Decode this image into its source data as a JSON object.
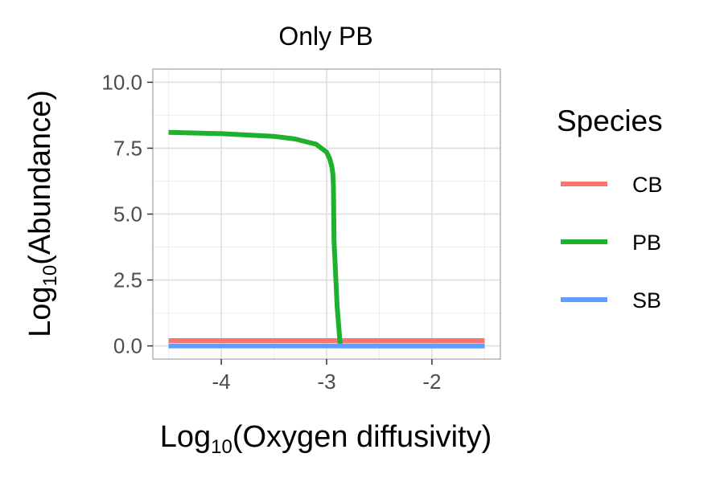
{
  "chart_data": {
    "type": "line",
    "title": "Only PB",
    "xlabel": {
      "base": "Log",
      "sub": "10",
      "paren": "(Oxygen diffusivity)"
    },
    "ylabel": {
      "base": "Log",
      "sub": "10",
      "paren": "(Abundance)"
    },
    "xlim": [
      -4.65,
      -1.35
    ],
    "ylim": [
      -0.5,
      10.5
    ],
    "x_ticks": [
      -4,
      -3,
      -2
    ],
    "x_tick_labels": [
      "-4",
      "-3",
      "-2"
    ],
    "y_ticks": [
      0,
      2.5,
      5,
      7.5,
      10
    ],
    "y_tick_labels": [
      "0.0",
      "2.5",
      "5.0",
      "7.5",
      "10.0"
    ],
    "grid": true,
    "legend": {
      "title": "Species",
      "position": "right"
    },
    "series": [
      {
        "name": "CB",
        "color": "#F8766D",
        "x": [
          -4.5,
          -1.5
        ],
        "y": [
          0.2,
          0.2
        ]
      },
      {
        "name": "PB",
        "color": "#1DB12D",
        "x": [
          -4.5,
          -4.0,
          -3.5,
          -3.3,
          -3.1,
          -3.0,
          -2.97,
          -2.95,
          -2.94,
          -2.935,
          -2.93,
          -2.9,
          -2.87,
          -2.85,
          -2.8,
          -2.5,
          -2.0,
          -1.5
        ],
        "y": [
          8.1,
          8.05,
          7.95,
          7.85,
          7.65,
          7.35,
          7.1,
          6.8,
          6.5,
          6.0,
          4.0,
          1.5,
          0.0,
          0.0,
          0.0,
          0.0,
          0.0,
          0.0
        ]
      },
      {
        "name": "SB",
        "color": "#619CFF",
        "x": [
          -4.5,
          -1.5
        ],
        "y": [
          0.0,
          0.0
        ]
      }
    ]
  }
}
